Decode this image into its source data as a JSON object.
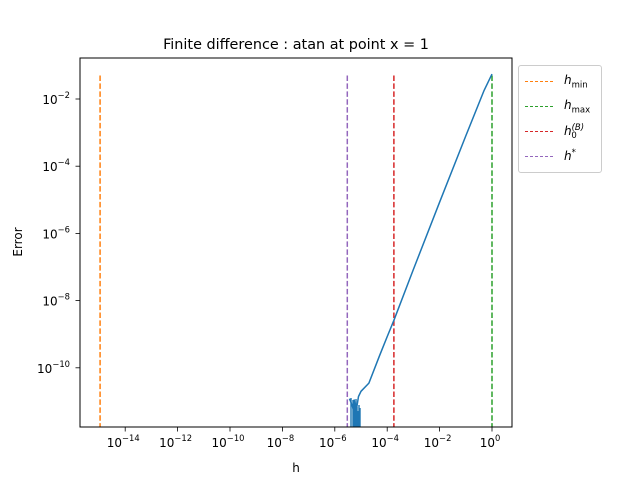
{
  "chart_data": {
    "type": "line",
    "title": "Finite difference : atan at point x = 1",
    "xlabel": "h",
    "ylabel": "Error",
    "xscale": "log",
    "yscale": "log",
    "xlim": [
      1.5e-16,
      4.0
    ],
    "ylim": [
      2.5e-12,
      0.15
    ],
    "grid": false,
    "legend_position": "outside upper right",
    "x_ticks": [
      "10^-14",
      "10^-12",
      "10^-10",
      "10^-8",
      "10^-6",
      "10^-4",
      "10^-2",
      "10^0"
    ],
    "y_ticks": [
      "10^-10",
      "10^-8",
      "10^-6",
      "10^-4",
      "10^-2"
    ],
    "series": [
      {
        "name": "error",
        "color": "#1f77b4",
        "style": "solid",
        "x": [
          3.6e-06,
          4e-06,
          4.5e-06,
          5e-06,
          5.5e-06,
          6.5e-06,
          8e-06,
          1e-05,
          2e-05,
          5e-05,
          0.0001,
          0.00018,
          0.001,
          0.01,
          0.1,
          0.5,
          1.0
        ],
        "y": [
          1.2e-11,
          1e-11,
          8e-12,
          6e-12,
          1.1e-11,
          5e-12,
          1.4e-11,
          2e-11,
          3.5e-11,
          2.2e-10,
          8.5e-10,
          2.6e-09,
          8.5e-08,
          8.5e-06,
          0.0008,
          0.018,
          0.055
        ]
      }
    ],
    "vlines": [
      {
        "name": "h_min",
        "label": "h_min",
        "x": 1.1e-15,
        "color": "#ff7f0e",
        "style": "dashed"
      },
      {
        "name": "h_max",
        "label": "h_max",
        "x": 1.0,
        "color": "#2ca02c",
        "style": "dashed"
      },
      {
        "name": "h0_B",
        "label": "h_0^(B)",
        "x": 0.00018,
        "color": "#d62728",
        "style": "dashed"
      },
      {
        "name": "h_star",
        "label": "h^*",
        "x": 3e-06,
        "color": "#9467bd",
        "style": "dashed"
      }
    ],
    "vlines_ymax": 0.05
  },
  "legend": {
    "items": [
      {
        "base": "h",
        "sub": "min",
        "sup": "",
        "color": "#ff7f0e"
      },
      {
        "base": "h",
        "sub": "max",
        "sup": "",
        "color": "#2ca02c"
      },
      {
        "base": "h",
        "sub": "0",
        "sup": "(B)",
        "color": "#d62728"
      },
      {
        "base": "h",
        "sub": "",
        "sup": "*",
        "color": "#9467bd"
      }
    ]
  }
}
